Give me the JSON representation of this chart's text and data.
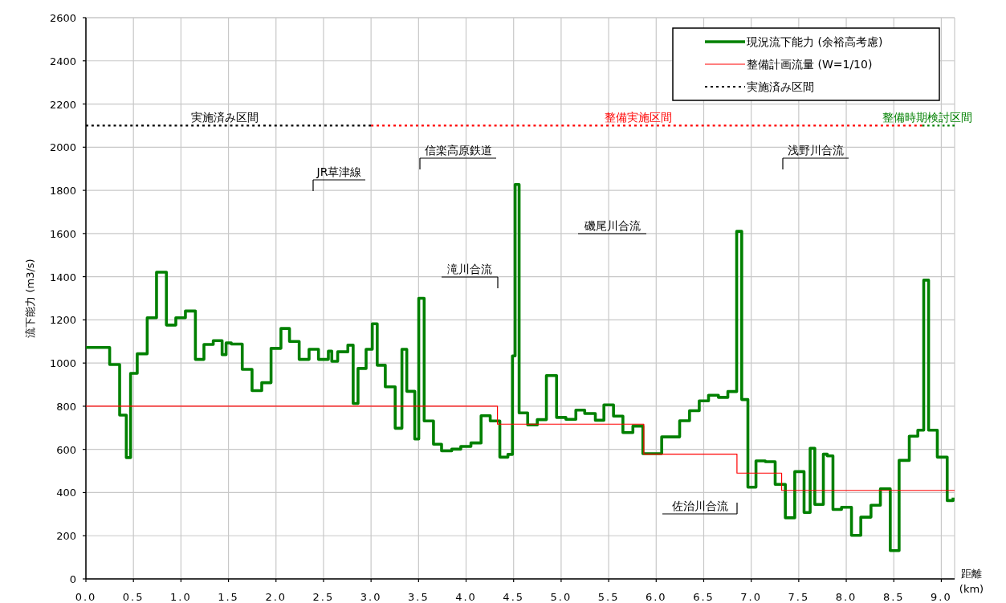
{
  "chart_data": {
    "type": "step",
    "xlabel": "距離 (km)",
    "ylabel": "流下能力 (m3/s)",
    "xlim": [
      0,
      9.14
    ],
    "ylim": [
      0,
      2600
    ],
    "xticks": [
      {
        "value": 0,
        "label": "0.0"
      },
      {
        "value": 0.5,
        "label": "0.5"
      },
      {
        "value": 1,
        "label": "1.0"
      },
      {
        "value": 1.5,
        "label": "1.5"
      },
      {
        "value": 2,
        "label": "2.0"
      },
      {
        "value": 2.5,
        "label": "2.5"
      },
      {
        "value": 3,
        "label": "3.0"
      },
      {
        "value": 3.5,
        "label": "3.5"
      },
      {
        "value": 4,
        "label": "4.0"
      },
      {
        "value": 4.5,
        "label": "4.5"
      },
      {
        "value": 5,
        "label": "5.0"
      },
      {
        "value": 5.5,
        "label": "5.5"
      },
      {
        "value": 6,
        "label": "6.0"
      },
      {
        "value": 6.5,
        "label": "6.5"
      },
      {
        "value": 7,
        "label": "7.0"
      },
      {
        "value": 7.5,
        "label": "7.5"
      },
      {
        "value": 8,
        "label": "8.0"
      },
      {
        "value": 8.5,
        "label": "8.5"
      },
      {
        "value": 9,
        "label": "9.0"
      }
    ],
    "yticks": [
      0,
      200,
      400,
      600,
      800,
      1000,
      1200,
      1400,
      1600,
      1800,
      2000,
      2200,
      2400,
      2600
    ],
    "grid": true,
    "legend": "top right",
    "series": [
      {
        "name": "現況流下能力 (余裕高考慮)",
        "color": "#008000",
        "type": "step",
        "x": [
          0,
          0.25,
          0.355,
          0.425,
          0.47,
          0.54,
          0.645,
          0.743,
          0.847,
          0.946,
          1.047,
          1.152,
          1.242,
          1.34,
          1.433,
          1.475,
          1.53,
          1.645,
          1.748,
          1.85,
          1.948,
          2.052,
          2.142,
          2.244,
          2.348,
          2.447,
          2.551,
          2.587,
          2.649,
          2.756,
          2.812,
          2.863,
          2.948,
          3.013,
          3.065,
          3.15,
          3.254,
          3.325,
          3.376,
          3.46,
          3.502,
          3.559,
          3.657,
          3.742,
          3.849,
          3.944,
          4.051,
          4.158,
          4.254,
          4.355,
          4.44,
          4.488,
          4.516,
          4.558,
          4.648,
          4.749,
          4.845,
          4.952,
          5.05,
          5.155,
          5.248,
          5.36,
          5.45,
          5.551,
          5.65,
          5.755,
          5.86,
          6.058,
          6.247,
          6.351,
          6.453,
          6.551,
          6.655,
          6.754,
          6.847,
          6.9,
          6.965,
          7.05,
          7.148,
          7.252,
          7.359,
          7.458,
          7.556,
          7.62,
          7.669,
          7.759,
          7.8,
          7.86,
          7.95,
          8.055,
          8.153,
          8.26,
          8.359,
          8.463,
          8.556,
          8.663,
          8.753,
          8.815,
          8.866,
          8.958,
          9.062,
          9.124
        ],
        "values": [
          1072,
          993,
          759,
          562,
          952,
          1043,
          1210,
          1421,
          1176,
          1210,
          1241,
          1017,
          1086,
          1104,
          1039,
          1093,
          1088,
          971,
          872,
          909,
          1068,
          1160,
          1100,
          1017,
          1064,
          1017,
          1055,
          1008,
          1052,
          1083,
          813,
          975,
          1064,
          1182,
          990,
          890,
          698,
          1064,
          869,
          648,
          1300,
          732,
          624,
          593,
          601,
          614,
          630,
          756,
          732,
          564,
          577,
          1033,
          1827,
          769,
          713,
          738,
          942,
          748,
          739,
          782,
          766,
          735,
          806,
          754,
          678,
          708,
          580,
          658,
          733,
          779,
          825,
          851,
          841,
          868,
          1610,
          831,
          425,
          547,
          543,
          438,
          283,
          497,
          308,
          605,
          345,
          578,
          570,
          322,
          332,
          202,
          286,
          341,
          417,
          131,
          549,
          661,
          689,
          1384,
          689,
          564,
          363,
          377
        ]
      },
      {
        "name": "整備計画流量 (W=1/10)",
        "color": "#ff0000",
        "type": "step",
        "x": [
          0,
          4.33,
          5.87,
          6.85,
          7.32,
          9.14
        ],
        "values": [
          800,
          717,
          578,
          490,
          410,
          410
        ]
      },
      {
        "name": "実施済み区間",
        "color": "#000000",
        "type": "line",
        "line_style": "dotted",
        "x": [
          0,
          3.0
        ],
        "values": [
          2100,
          2100
        ]
      },
      {
        "color": "#ff0000",
        "type": "line",
        "line_style": "dotted",
        "x": [
          3.0,
          8.8
        ],
        "values": [
          2100,
          2100
        ]
      },
      {
        "color": "#008000",
        "type": "line",
        "line_style": "dotted",
        "x": [
          8.8,
          9.14
        ],
        "values": [
          2100,
          2100
        ]
      }
    ],
    "annotations": [
      {
        "text": "実施済み区間",
        "x": 1.46,
        "y": 2100
      },
      {
        "text": "整備実施区間",
        "x": 5.81,
        "y": 2100
      },
      {
        "text": "整備時期検討区間",
        "x": 8.85,
        "y": 2100
      },
      "JR草津線",
      "信楽高原鉄道",
      "滝川合流",
      "磯尾川合流",
      "浅野川合流",
      "佐治川合流"
    ]
  }
}
